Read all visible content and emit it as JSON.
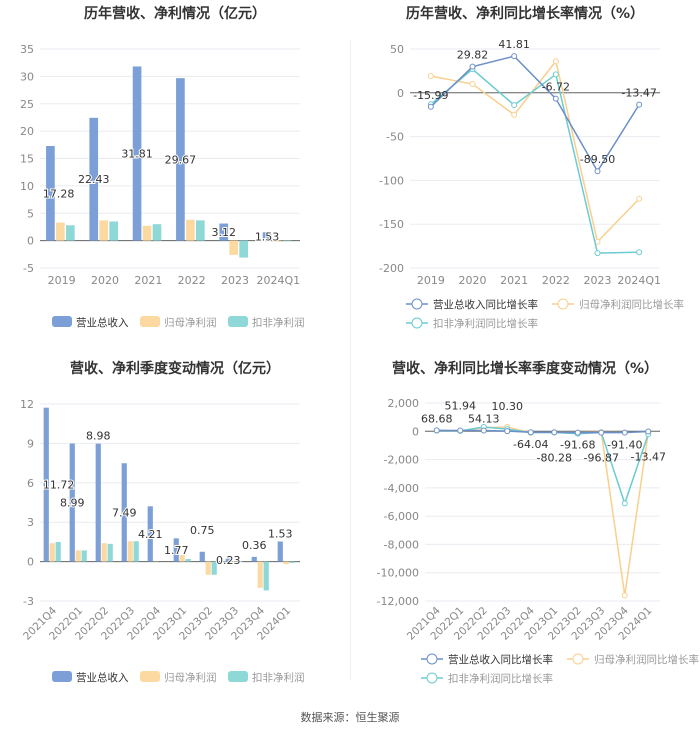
{
  "colors": {
    "revenue": "#7b9fd6",
    "net": "#fcd9a0",
    "deducted": "#8ed8d8",
    "revenue_line": "#6c8fc8",
    "net_line": "#f9cf8e",
    "deducted_line": "#6ccbd0"
  },
  "source": "数据来源：恒生聚源",
  "chart_data": [
    {
      "type": "bar",
      "title": "历年营收、净利情况（亿元）",
      "categories": [
        "2019",
        "2020",
        "2021",
        "2022",
        "2023",
        "2024Q1"
      ],
      "ylim": [
        -5,
        35
      ],
      "yticks": [
        -5,
        0,
        5,
        10,
        15,
        20,
        25,
        30,
        35
      ],
      "legend": "bottom",
      "grid": true,
      "series": [
        {
          "name": "营业总收入",
          "values": [
            17.28,
            22.43,
            31.81,
            29.67,
            3.12,
            1.53
          ],
          "labels": [
            "17.28",
            "22.43",
            "31.81",
            "29.67",
            "3.12",
            "1.53"
          ]
        },
        {
          "name": "归母净利润",
          "values": [
            3.3,
            3.7,
            2.7,
            3.8,
            -2.6,
            -0.2
          ]
        },
        {
          "name": "扣非净利润",
          "values": [
            2.8,
            3.5,
            3.0,
            3.7,
            -3.1,
            -0.1
          ]
        }
      ]
    },
    {
      "type": "line",
      "title": "历年营收、净利同比增长率情况（%）",
      "categories": [
        "2019",
        "2020",
        "2021",
        "2022",
        "2023",
        "2024Q1"
      ],
      "ylim": [
        -200,
        50
      ],
      "yticks": [
        -200,
        -150,
        -100,
        -50,
        0,
        50
      ],
      "legend": "bottom",
      "grid": true,
      "series": [
        {
          "name": "营业总收入同比增长率",
          "values": [
            -15.99,
            29.82,
            41.81,
            -6.72,
            -89.5,
            -13.47
          ],
          "labels": [
            "-15.99",
            "29.82",
            "41.81",
            "-6.72",
            "-89.50",
            "-13.47"
          ]
        },
        {
          "name": "归母净利润同比增长率",
          "values": [
            19,
            10,
            -25,
            36,
            -170,
            -121
          ]
        },
        {
          "name": "扣非净利润同比增长率",
          "values": [
            -13,
            27,
            -14,
            21,
            -183,
            -182
          ]
        }
      ]
    },
    {
      "type": "bar",
      "title": "营收、净利季度变动情况（亿元）",
      "categories": [
        "2021Q4",
        "2022Q1",
        "2022Q2",
        "2022Q3",
        "2022Q4",
        "2023Q1",
        "2023Q2",
        "2023Q3",
        "2023Q4",
        "2024Q1"
      ],
      "ylim": [
        -3,
        12
      ],
      "yticks": [
        -3,
        0,
        3,
        6,
        9,
        12
      ],
      "legend": "bottom",
      "grid": true,
      "series": [
        {
          "name": "营业总收入",
          "values": [
            11.72,
            8.99,
            8.98,
            7.49,
            4.21,
            1.77,
            0.75,
            0.23,
            0.36,
            1.53
          ],
          "labels": [
            "11.72",
            "8.99",
            "8.98",
            "7.49",
            "4.21",
            "1.77",
            "0.75",
            "0.23",
            "0.36",
            "1.53"
          ]
        },
        {
          "name": "归母净利润",
          "values": [
            1.4,
            0.85,
            1.4,
            1.55,
            0.02,
            0.5,
            -1.0,
            -0.05,
            -2.0,
            -0.2
          ]
        },
        {
          "name": "扣非净利润",
          "values": [
            1.5,
            0.85,
            1.35,
            1.55,
            0.0,
            0.2,
            -1.0,
            0.05,
            -2.2,
            -0.1
          ]
        }
      ]
    },
    {
      "type": "line",
      "title": "营收、净利同比增长率季度变动情况（%）",
      "categories": [
        "2021Q4",
        "2022Q1",
        "2022Q2",
        "2022Q3",
        "2022Q4",
        "2023Q1",
        "2023Q2",
        "2023Q3",
        "2023Q4",
        "2024Q1"
      ],
      "ylim": [
        -12000,
        2000
      ],
      "yticks": [
        -12000,
        -10000,
        -8000,
        -6000,
        -4000,
        -2000,
        0,
        2000
      ],
      "legend": "bottom",
      "grid": true,
      "series": [
        {
          "name": "营业总收入同比增长率",
          "values": [
            68.68,
            51.94,
            54.13,
            10.3,
            -64.04,
            -80.28,
            -91.68,
            -96.87,
            -91.4,
            -13.47
          ],
          "labels": [
            "68.68",
            "51.94",
            "54.13",
            "10.30",
            "-64.04",
            "-80.28",
            "-91.68",
            "-96.87",
            "-91.40",
            "-13.47"
          ]
        },
        {
          "name": "归母净利润同比增长率",
          "values": [
            50,
            30,
            250,
            300,
            -100,
            -70,
            -100,
            -60,
            -11600,
            -100
          ]
        },
        {
          "name": "扣非净利润同比增长率",
          "values": [
            50,
            30,
            300,
            150,
            -90,
            -80,
            -170,
            -90,
            -5100,
            -200
          ]
        }
      ]
    }
  ]
}
